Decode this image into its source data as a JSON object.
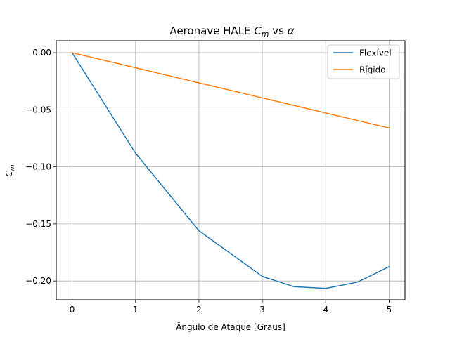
{
  "chart_data": {
    "type": "line",
    "title_prefix": "Aeronave HALE ",
    "title_var": "C",
    "title_sub": "m",
    "title_suffix": " vs ",
    "title_greek": "α",
    "xlabel": "Ângulo de Ataque [Graus]",
    "ylabel_var": "C",
    "ylabel_sub": "m",
    "xlim": [
      -0.25,
      5.25
    ],
    "ylim": [
      -0.2165,
      0.0105
    ],
    "x_ticks": [
      0,
      1,
      2,
      3,
      4,
      5
    ],
    "x_tick_labels": [
      "0",
      "1",
      "2",
      "3",
      "4",
      "5"
    ],
    "y_ticks": [
      0.0,
      -0.05,
      -0.1,
      -0.15,
      -0.2
    ],
    "y_tick_labels": [
      "0.00",
      "−0.05",
      "−0.10",
      "−0.15",
      "−0.20"
    ],
    "grid": true,
    "legend_position": "top-right",
    "series": [
      {
        "name": "Flexível",
        "color": "#1f77b4",
        "x": [
          0,
          1,
          2,
          3,
          3.5,
          4,
          4.5,
          5
        ],
        "y": [
          0.0,
          -0.088,
          -0.156,
          -0.196,
          -0.205,
          -0.2065,
          -0.201,
          -0.1875
        ]
      },
      {
        "name": "Rígido",
        "color": "#ff7f0e",
        "x": [
          0,
          1,
          2,
          3,
          4,
          5
        ],
        "y": [
          0.0,
          -0.0132,
          -0.0264,
          -0.0396,
          -0.0528,
          -0.066
        ]
      }
    ]
  }
}
